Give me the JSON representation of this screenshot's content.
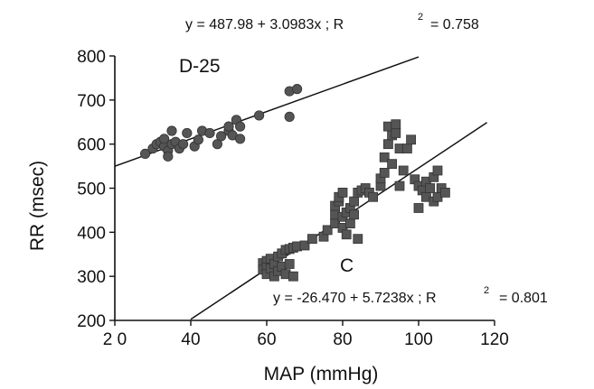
{
  "chart_data": {
    "type": "scatter",
    "title": "",
    "xlabel": "MAP (mmHg)",
    "ylabel": "RR  (msec)",
    "xlim": [
      20,
      120
    ],
    "ylim": [
      200,
      800
    ],
    "xticks": [
      20,
      40,
      60,
      80,
      100,
      120
    ],
    "yticks": [
      200,
      300,
      400,
      500,
      600,
      700,
      800
    ],
    "xtick_labels": [
      "2 0",
      "40",
      "60",
      "80",
      "100",
      "120"
    ],
    "ytick_labels": [
      "200",
      "300",
      "400",
      "500",
      "600",
      "700",
      "800"
    ],
    "grid": false,
    "series": [
      {
        "name": "D-25",
        "marker": "circle",
        "color": "#555555",
        "regression": {
          "intercept": 487.98,
          "slope": 3.0983,
          "r2": 0.758,
          "equation_text": "y = 487.98 + 3.0983x ;  R",
          "r2_text": "=  0.758",
          "x_range": [
            20,
            100
          ]
        },
        "points": [
          [
            28,
            578
          ],
          [
            30,
            590
          ],
          [
            31,
            600
          ],
          [
            32,
            605
          ],
          [
            33,
            595
          ],
          [
            33,
            612
          ],
          [
            34,
            585
          ],
          [
            34,
            572
          ],
          [
            35,
            600
          ],
          [
            35,
            630
          ],
          [
            36,
            605
          ],
          [
            37,
            590
          ],
          [
            38,
            600
          ],
          [
            39,
            625
          ],
          [
            41,
            595
          ],
          [
            42,
            610
          ],
          [
            43,
            630
          ],
          [
            45,
            625
          ],
          [
            47,
            600
          ],
          [
            48,
            618
          ],
          [
            50,
            630
          ],
          [
            50,
            640
          ],
          [
            51,
            620
          ],
          [
            52,
            655
          ],
          [
            53,
            612
          ],
          [
            53,
            640
          ],
          [
            58,
            665
          ],
          [
            66,
            662
          ],
          [
            66,
            720
          ],
          [
            68,
            725
          ]
        ]
      },
      {
        "name": "C",
        "marker": "square",
        "color": "#555555",
        "regression": {
          "intercept": -26.47,
          "slope": 5.7238,
          "r2": 0.801,
          "equation_text": "y = -26.470 + 5.7238x ; R",
          "r2_text": "= 0.801",
          "x_range": [
            40,
            118
          ]
        },
        "points": [
          [
            59,
            330
          ],
          [
            59,
            315
          ],
          [
            60,
            335
          ],
          [
            60,
            320
          ],
          [
            60,
            305
          ],
          [
            61,
            340
          ],
          [
            61,
            318
          ],
          [
            62,
            328
          ],
          [
            62,
            300
          ],
          [
            63,
            345
          ],
          [
            63,
            312
          ],
          [
            64,
            352
          ],
          [
            64,
            322
          ],
          [
            65,
            360
          ],
          [
            65,
            305
          ],
          [
            66,
            362
          ],
          [
            66,
            328
          ],
          [
            67,
            365
          ],
          [
            67,
            300
          ],
          [
            68,
            368
          ],
          [
            70,
            370
          ],
          [
            72,
            385
          ],
          [
            75,
            390
          ],
          [
            76,
            405
          ],
          [
            78,
            420
          ],
          [
            78,
            440
          ],
          [
            78,
            460
          ],
          [
            79,
            470
          ],
          [
            79,
            480
          ],
          [
            80,
            490
          ],
          [
            80,
            435
          ],
          [
            80,
            410
          ],
          [
            81,
            445
          ],
          [
            81,
            395
          ],
          [
            82,
            420
          ],
          [
            82,
            455
          ],
          [
            83,
            470
          ],
          [
            83,
            440
          ],
          [
            84,
            385
          ],
          [
            84,
            490
          ],
          [
            85,
            495
          ],
          [
            86,
            500
          ],
          [
            87,
            490
          ],
          [
            88,
            480
          ],
          [
            90,
            505
          ],
          [
            90,
            522
          ],
          [
            91,
            535
          ],
          [
            91,
            570
          ],
          [
            92,
            600
          ],
          [
            92,
            640
          ],
          [
            93,
            620
          ],
          [
            93,
            555
          ],
          [
            94,
            625
          ],
          [
            94,
            645
          ],
          [
            95,
            590
          ],
          [
            95,
            505
          ],
          [
            96,
            540
          ],
          [
            97,
            590
          ],
          [
            98,
            610
          ],
          [
            99,
            520
          ],
          [
            100,
            505
          ],
          [
            100,
            455
          ],
          [
            101,
            495
          ],
          [
            102,
            515
          ],
          [
            102,
            480
          ],
          [
            103,
            500
          ],
          [
            104,
            525
          ],
          [
            104,
            470
          ],
          [
            105,
            540
          ],
          [
            105,
            480
          ],
          [
            106,
            500
          ],
          [
            107,
            490
          ]
        ]
      }
    ]
  }
}
